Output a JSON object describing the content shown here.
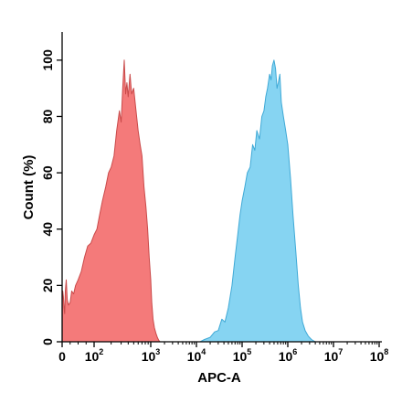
{
  "chart_data": {
    "type": "area",
    "title": "",
    "xlabel": "APC-A",
    "ylabel": "Count (%)",
    "x_scale": "biexponential (linear near 0, log10 above)",
    "xlim": [
      0,
      100000000
    ],
    "ylim": [
      0,
      110
    ],
    "grid": false,
    "x_ticks": [
      {
        "value": 0,
        "base": "0",
        "exp": ""
      },
      {
        "value": 100,
        "base": "10",
        "exp": "2"
      },
      {
        "value": 1000,
        "base": "10",
        "exp": "3"
      },
      {
        "value": 10000,
        "base": "10",
        "exp": "4"
      },
      {
        "value": 100000,
        "base": "10",
        "exp": "5"
      },
      {
        "value": 1000000,
        "base": "10",
        "exp": "6"
      },
      {
        "value": 10000000,
        "base": "10",
        "exp": "7"
      },
      {
        "value": 100000000,
        "base": "10",
        "exp": "8"
      }
    ],
    "y_ticks": [
      {
        "value": 0,
        "label": "0"
      },
      {
        "value": 20,
        "label": "20"
      },
      {
        "value": 40,
        "label": "40"
      },
      {
        "value": 60,
        "label": "60"
      },
      {
        "value": 80,
        "label": "80"
      },
      {
        "value": 100,
        "label": "100"
      }
    ],
    "series": [
      {
        "color": "#f47a7a",
        "stroke": "#c94a4a",
        "points": [
          [
            0,
            14
          ],
          [
            2,
            18
          ],
          [
            4,
            16
          ],
          [
            6,
            12
          ],
          [
            8,
            10
          ],
          [
            10,
            18
          ],
          [
            13,
            22
          ],
          [
            16,
            15
          ],
          [
            20,
            13
          ],
          [
            25,
            14
          ],
          [
            30,
            18
          ],
          [
            36,
            17
          ],
          [
            42,
            20
          ],
          [
            50,
            22
          ],
          [
            60,
            25
          ],
          [
            70,
            30
          ],
          [
            80,
            34
          ],
          [
            90,
            35
          ],
          [
            100,
            38
          ],
          [
            112,
            40
          ],
          [
            125,
            45
          ],
          [
            140,
            50
          ],
          [
            160,
            55
          ],
          [
            180,
            60
          ],
          [
            200,
            62
          ],
          [
            225,
            66
          ],
          [
            250,
            75
          ],
          [
            280,
            82
          ],
          [
            300,
            78
          ],
          [
            320,
            90
          ],
          [
            340,
            100
          ],
          [
            360,
            88
          ],
          [
            380,
            92
          ],
          [
            400,
            87
          ],
          [
            430,
            95
          ],
          [
            460,
            88
          ],
          [
            500,
            90
          ],
          [
            550,
            82
          ],
          [
            600,
            75
          ],
          [
            650,
            70
          ],
          [
            700,
            66
          ],
          [
            760,
            55
          ],
          [
            820,
            48
          ],
          [
            880,
            40
          ],
          [
            940,
            30
          ],
          [
            1000,
            22
          ],
          [
            1050,
            14
          ],
          [
            1120,
            8
          ],
          [
            1200,
            5
          ],
          [
            1300,
            3
          ],
          [
            1400,
            1.5
          ],
          [
            1500,
            0.5
          ],
          [
            1600,
            0
          ]
        ]
      },
      {
        "color": "#86d4f2",
        "stroke": "#3fa9d6",
        "points": [
          [
            12000,
            0
          ],
          [
            15000,
            0.8
          ],
          [
            20000,
            1.6
          ],
          [
            25000,
            3.5
          ],
          [
            30000,
            4
          ],
          [
            36000,
            8
          ],
          [
            42000,
            7
          ],
          [
            50000,
            12
          ],
          [
            60000,
            20
          ],
          [
            70000,
            30
          ],
          [
            80000,
            38
          ],
          [
            90000,
            45
          ],
          [
            100000,
            50
          ],
          [
            115000,
            55
          ],
          [
            130000,
            60
          ],
          [
            150000,
            62
          ],
          [
            170000,
            70
          ],
          [
            190000,
            68
          ],
          [
            210000,
            75
          ],
          [
            240000,
            72
          ],
          [
            270000,
            80
          ],
          [
            300000,
            82
          ],
          [
            330000,
            87
          ],
          [
            360000,
            90
          ],
          [
            400000,
            95
          ],
          [
            430000,
            93
          ],
          [
            460000,
            98
          ],
          [
            500000,
            100
          ],
          [
            540000,
            97
          ],
          [
            580000,
            90
          ],
          [
            620000,
            92
          ],
          [
            670000,
            95
          ],
          [
            720000,
            85
          ],
          [
            800000,
            80
          ],
          [
            900000,
            75
          ],
          [
            1000000,
            70
          ],
          [
            1150000,
            58
          ],
          [
            1300000,
            45
          ],
          [
            1500000,
            32
          ],
          [
            1700000,
            20
          ],
          [
            1900000,
            12
          ],
          [
            2100000,
            7
          ],
          [
            2400000,
            4
          ],
          [
            2800000,
            2
          ],
          [
            3300000,
            0.8
          ],
          [
            4000000,
            0
          ]
        ]
      }
    ]
  }
}
